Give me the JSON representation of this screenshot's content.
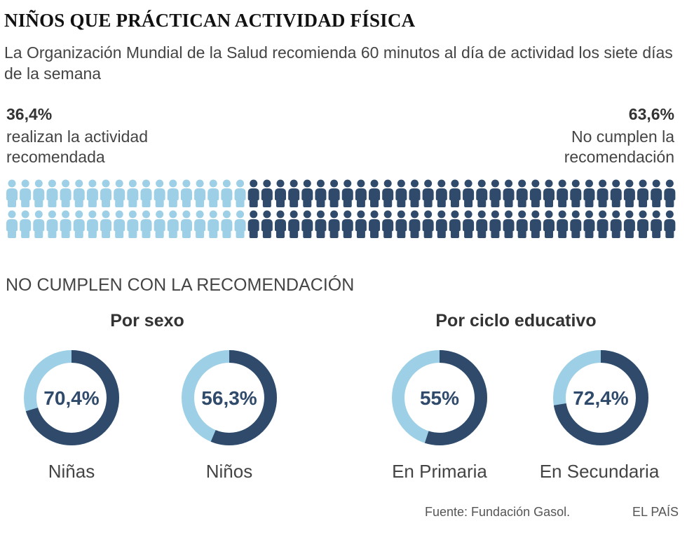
{
  "title": "NIÑOS QUE PRÁCTICAN ACTIVIDAD FÍSICA",
  "subtitle": "La Organización Mundial de la Salud recomienda 60 minutos al día de actividad los siete días de la semana",
  "left_stat": {
    "value": "36,4%",
    "label": "realizan la actividad recomendada"
  },
  "right_stat": {
    "value": "63,6%",
    "label": "No cumplen la recomendación"
  },
  "section_title": "NO CUMPLEN CON LA RECOMENDACIÓN",
  "group_sex": "Por sexo",
  "group_cycle": "Por ciclo educativo",
  "source": "Fuente: Fundación Gasol.",
  "brand": "EL PAÍS",
  "colors": {
    "light": "#9dd0e6",
    "dark": "#2f4a6b"
  },
  "chart_data": [
    {
      "type": "pictogram",
      "rows": 2,
      "per_row": 50,
      "highlight_per_row": 18,
      "series": [
        {
          "name": "realizan la actividad recomendada",
          "value": 36.4
        },
        {
          "name": "No cumplen la recomendación",
          "value": 63.6
        }
      ]
    },
    {
      "type": "pie",
      "title": "Por sexo",
      "donuts": [
        {
          "label": "Niñas",
          "value": 70.4,
          "text": "70,4%"
        },
        {
          "label": "Niños",
          "value": 56.3,
          "text": "56,3%"
        }
      ]
    },
    {
      "type": "pie",
      "title": "Por ciclo educativo",
      "donuts": [
        {
          "label": "En Primaria",
          "value": 55,
          "text": "55%"
        },
        {
          "label": "En Secundaria",
          "value": 72.4,
          "text": "72,4%"
        }
      ]
    }
  ]
}
